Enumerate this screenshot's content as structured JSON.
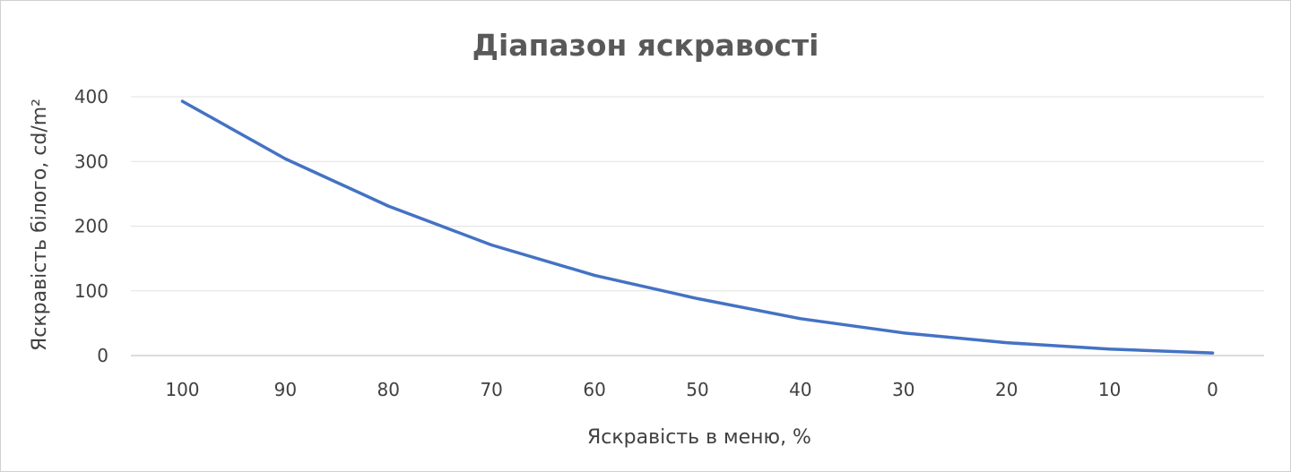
{
  "chart_data": {
    "type": "line",
    "title": "Діапазон яскравості",
    "xlabel": "Яскравість в меню, %",
    "ylabel": "Яскравість білого,  cd/m²",
    "categories": [
      "100",
      "90",
      "80",
      "70",
      "60",
      "50",
      "40",
      "30",
      "20",
      "10",
      "0"
    ],
    "series": [
      {
        "name": "",
        "color": "#4472c4",
        "values": [
          393,
          304,
          231,
          171,
          124,
          88,
          57,
          35,
          20,
          10,
          4
        ]
      }
    ],
    "y_ticks": [
      "0",
      "100",
      "200",
      "300",
      "400"
    ],
    "ylim": [
      0,
      400
    ],
    "grid": true,
    "legend": "none"
  }
}
